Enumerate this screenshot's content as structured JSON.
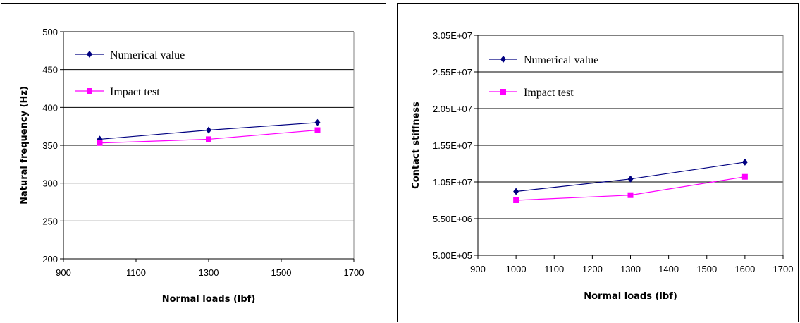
{
  "colors": {
    "numerical": "#000080",
    "impact": "#ff00ff",
    "grid": "#000000"
  },
  "chart_data": [
    {
      "type": "line",
      "xlabel": "Normal loads (lbf)",
      "ylabel": "Natural frequency (Hz)",
      "xlim": [
        900,
        1700
      ],
      "ylim": [
        200,
        500
      ],
      "x_ticks": [
        "900",
        "1100",
        "1300",
        "1500",
        "1700"
      ],
      "y_ticks": [
        "200",
        "250",
        "300",
        "350",
        "400",
        "450",
        "500"
      ],
      "grid": true,
      "legend_position": "top-left",
      "series": [
        {
          "name": "Numerical value",
          "marker": "diamond",
          "x": [
            1000,
            1300,
            1600
          ],
          "y": [
            358,
            370,
            380
          ]
        },
        {
          "name": "Impact test",
          "marker": "square",
          "x": [
            1000,
            1300,
            1600
          ],
          "y": [
            353,
            358,
            370
          ]
        }
      ]
    },
    {
      "type": "line",
      "xlabel": "Normal loads (lbf)",
      "ylabel": "Contact stiffness",
      "xlim": [
        900,
        1700
      ],
      "ylim": [
        500000,
        30500000
      ],
      "x_ticks": [
        "900",
        "1000",
        "1100",
        "1200",
        "1300",
        "1400",
        "1500",
        "1600",
        "1700"
      ],
      "y_ticks": [
        "5.00E+05",
        "5.50E+06",
        "1.05E+07",
        "1.55E+07",
        "2.05E+07",
        "2.55E+07",
        "3.05E+07"
      ],
      "grid": true,
      "legend_position": "top-left",
      "series": [
        {
          "name": "Numerical value",
          "marker": "diamond",
          "x": [
            1000,
            1300,
            1600
          ],
          "y": [
            9200000,
            10900000,
            13200000
          ]
        },
        {
          "name": "Impact test",
          "marker": "square",
          "x": [
            1000,
            1300,
            1600
          ],
          "y": [
            8000000,
            8700000,
            11200000
          ]
        }
      ]
    }
  ]
}
